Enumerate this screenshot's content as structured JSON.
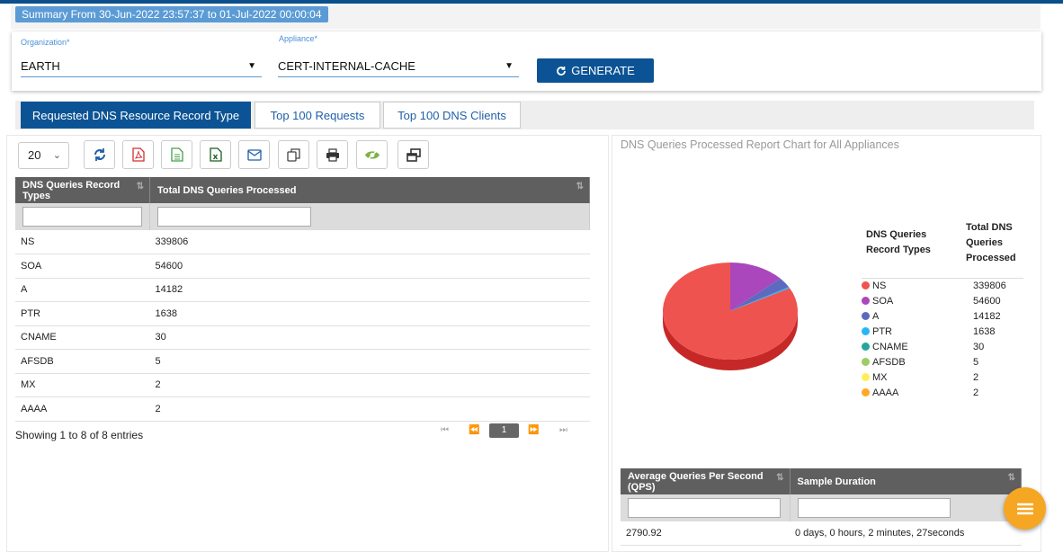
{
  "summary": "Summary From 30-Jun-2022 23:57:37 to 01-Jul-2022 00:00:04",
  "filters": {
    "org_label": "Organization*",
    "org_value": "EARTH",
    "appliance_label": "Appliance*",
    "appliance_value": "CERT-INTERNAL-CACHE",
    "generate_label": "GENERATE"
  },
  "tabs": [
    {
      "label": "Requested DNS Resource Record Type",
      "active": true
    },
    {
      "label": "Top 100 Requests"
    },
    {
      "label": "Top 100 DNS Clients"
    }
  ],
  "page_size": "20",
  "toolbar_icons": [
    "refresh-icon",
    "pdf-icon",
    "csv-icon",
    "excel-icon",
    "email-icon",
    "copy-icon",
    "print-icon",
    "visibility-icon",
    "window-icon"
  ],
  "table": {
    "headers": [
      "DNS Queries Record Types",
      "Total DNS Queries Processed"
    ],
    "rows": [
      [
        "NS",
        "339806"
      ],
      [
        "SOA",
        "54600"
      ],
      [
        "A",
        "14182"
      ],
      [
        "PTR",
        "1638"
      ],
      [
        "CNAME",
        "30"
      ],
      [
        "AFSDB",
        "5"
      ],
      [
        "MX",
        "2"
      ],
      [
        "AAAA",
        "2"
      ]
    ]
  },
  "showing": "Showing 1 to 8 of 8 entries",
  "pager": {
    "current": "1"
  },
  "chart_title": "DNS Queries Processed Report Chart for All Appliances",
  "legend": {
    "header_types": "DNS Queries Record Types",
    "header_total": "Total DNS Queries Processed"
  },
  "chart_data": {
    "type": "pie",
    "title": "DNS Queries Processed Report Chart for All Appliances",
    "labels": [
      "NS",
      "SOA",
      "A",
      "PTR",
      "CNAME",
      "AFSDB",
      "MX",
      "AAAA"
    ],
    "values": [
      339806,
      54600,
      14182,
      1638,
      30,
      5,
      2,
      2
    ],
    "colors": [
      "#ef5350",
      "#ab47bc",
      "#5c6bc0",
      "#29b6f6",
      "#26a69a",
      "#9ccc65",
      "#ffee58",
      "#ffa726"
    ],
    "legend": "right"
  },
  "qps_table": {
    "headers": [
      "Average Queries Per Second (QPS)",
      "Sample Duration"
    ],
    "row": [
      "2790.92",
      "0 days, 0 hours, 2 minutes, 27seconds"
    ]
  }
}
